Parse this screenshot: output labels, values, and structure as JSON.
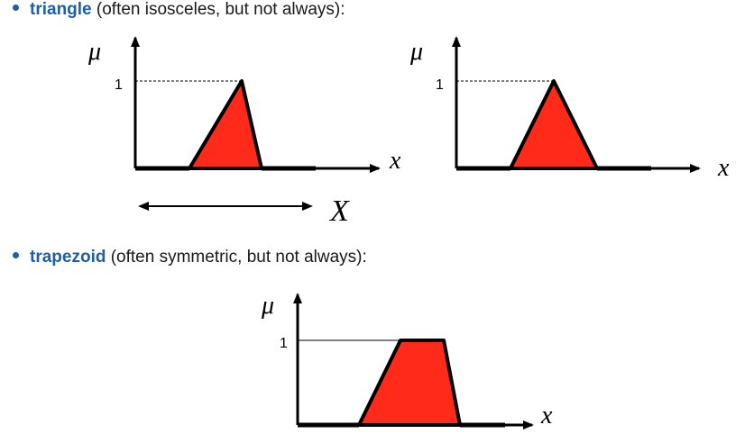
{
  "bullets": [
    {
      "term": "triangle",
      "note": " (often isosceles, but not always):"
    },
    {
      "term": "trapezoid",
      "note": " (often symmetric, but not always):"
    }
  ],
  "axis_labels": {
    "mu": "μ",
    "x": "x",
    "one": "1",
    "universe": "X"
  },
  "colors": {
    "fill": "#ff2a1a",
    "stroke": "#000000",
    "bullet_term": "#1f5fa8"
  },
  "shapes": [
    {
      "type": "triangle",
      "vertices": [
        [
          0.35,
          0
        ],
        [
          0.7,
          1
        ],
        [
          0.85,
          0
        ]
      ]
    },
    {
      "type": "triangle",
      "vertices": [
        [
          0.3,
          0
        ],
        [
          0.6,
          1
        ],
        [
          0.9,
          0
        ]
      ]
    },
    {
      "type": "trapezoid",
      "vertices": [
        [
          0.25,
          0
        ],
        [
          0.4,
          1
        ],
        [
          0.6,
          1
        ],
        [
          0.75,
          0
        ]
      ]
    }
  ]
}
